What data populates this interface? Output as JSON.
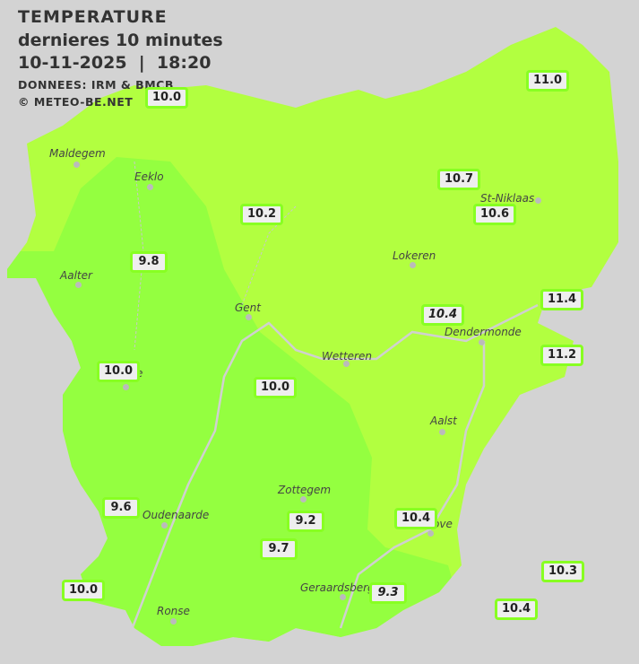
{
  "header": {
    "title": "TEMPERATURE",
    "subtitle": "dernieres 10 minutes",
    "datetime": "10-11-2025  |  18:20",
    "source": "DONNEES: IRM & BMCB",
    "copyright": "© METEO-BE.NET"
  },
  "colors": {
    "background": "#d3d3d3",
    "zone_10_11": "#b2ff40",
    "zone_9_10": "#94ff40",
    "label_border": "#88ff22"
  },
  "cities": [
    {
      "name": "Maldegem"
    },
    {
      "name": "Eeklo"
    },
    {
      "name": "Aalter"
    },
    {
      "name": "Gent"
    },
    {
      "name": "Lokeren"
    },
    {
      "name": "St-Niklaas"
    },
    {
      "name": "Dendermonde"
    },
    {
      "name": "Wetteren"
    },
    {
      "name": "Aalst"
    },
    {
      "name": "Zottegem"
    },
    {
      "name": "Oudenaarde"
    },
    {
      "name": "Ronse"
    },
    {
      "name": "Geraardsberg"
    },
    {
      "name": "ove"
    },
    {
      "name": "e"
    }
  ],
  "readings": [
    {
      "value": "10.0"
    },
    {
      "value": "11.0"
    },
    {
      "value": "10.7"
    },
    {
      "value": "10.2"
    },
    {
      "value": "10.6"
    },
    {
      "value": "9.8"
    },
    {
      "value": "11.4"
    },
    {
      "value": "10.4"
    },
    {
      "value": "11.2"
    },
    {
      "value": "10.0"
    },
    {
      "value": "10.0"
    },
    {
      "value": "9.6"
    },
    {
      "value": "9.2"
    },
    {
      "value": "10.4"
    },
    {
      "value": "9.7"
    },
    {
      "value": "10.3"
    },
    {
      "value": "10.0"
    },
    {
      "value": "9.3"
    },
    {
      "value": "10.4"
    }
  ]
}
